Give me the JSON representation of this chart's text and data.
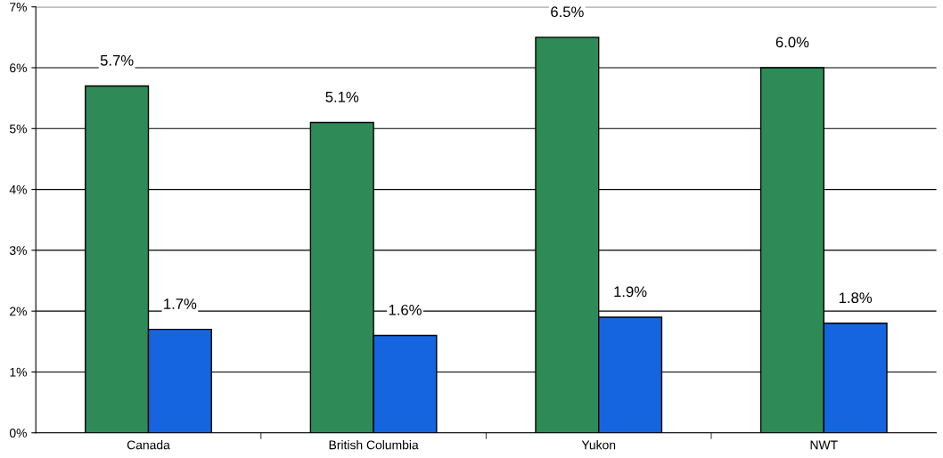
{
  "chart_data": {
    "type": "bar",
    "categories": [
      "Canada",
      "British Columbia",
      "Yukon",
      "NWT"
    ],
    "series": [
      {
        "color": "#2e8b57",
        "values": [
          5.7,
          5.1,
          6.5,
          6.0
        ],
        "value_labels": [
          "5.7%",
          "5.1%",
          "6.5%",
          "6.0%"
        ]
      },
      {
        "color": "#1565e0",
        "values": [
          1.7,
          1.6,
          1.9,
          1.8
        ],
        "value_labels": [
          "1.7%",
          "1.6%",
          "1.9%",
          "1.8%"
        ]
      }
    ],
    "ylim": [
      0,
      7
    ],
    "yticks": [
      {
        "value": 0,
        "label": "0%"
      },
      {
        "value": 1,
        "label": "1%"
      },
      {
        "value": 2,
        "label": "2%"
      },
      {
        "value": 3,
        "label": "3%"
      },
      {
        "value": 4,
        "label": "4%"
      },
      {
        "value": 5,
        "label": "5%"
      },
      {
        "value": 6,
        "label": "6%"
      },
      {
        "value": 7,
        "label": "7%"
      }
    ],
    "grid": "y",
    "legend": false
  }
}
